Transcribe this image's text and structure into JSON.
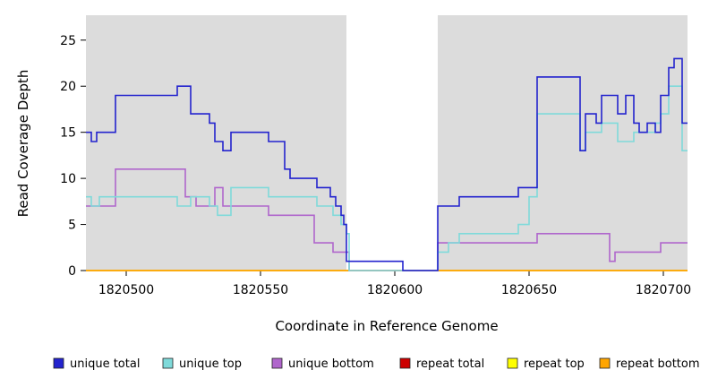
{
  "chart_data": {
    "type": "line",
    "subtype": "step",
    "title": "",
    "xlabel": "Coordinate in Reference Genome",
    "ylabel": "Read Coverage Depth",
    "xlim": [
      1820485,
      1820709
    ],
    "ylim": [
      0,
      27.7
    ],
    "xticks": [
      1820500,
      1820550,
      1820600,
      1820650,
      1820700
    ],
    "yticks": [
      0,
      5,
      10,
      15,
      20,
      25
    ],
    "grid": false,
    "panel_background": "#DCDCDC",
    "gap_region": {
      "x0": 1820582,
      "x1": 1820616,
      "color": "#FFFFFF"
    },
    "legend_position": "bottom",
    "series": [
      {
        "name": "unique total",
        "color": "#2323CE",
        "steps": [
          [
            1820485,
            15
          ],
          [
            1820487,
            14
          ],
          [
            1820489,
            15
          ],
          [
            1820496,
            19
          ],
          [
            1820519,
            20
          ],
          [
            1820524,
            17
          ],
          [
            1820531,
            16
          ],
          [
            1820533,
            14
          ],
          [
            1820536,
            13
          ],
          [
            1820539,
            15
          ],
          [
            1820553,
            14
          ],
          [
            1820559,
            11
          ],
          [
            1820561,
            10
          ],
          [
            1820571,
            9
          ],
          [
            1820576,
            8
          ],
          [
            1820578,
            7
          ],
          [
            1820580,
            6
          ],
          [
            1820581,
            5
          ],
          [
            1820582,
            1
          ],
          [
            1820603,
            0
          ],
          [
            1820616,
            7
          ],
          [
            1820624,
            8
          ],
          [
            1820646,
            9
          ],
          [
            1820653,
            21
          ],
          [
            1820669,
            13
          ],
          [
            1820671,
            17
          ],
          [
            1820675,
            16
          ],
          [
            1820677,
            19
          ],
          [
            1820683,
            17
          ],
          [
            1820686,
            19
          ],
          [
            1820689,
            16
          ],
          [
            1820691,
            15
          ],
          [
            1820694,
            16
          ],
          [
            1820697,
            15
          ],
          [
            1820699,
            19
          ],
          [
            1820702,
            22
          ],
          [
            1820704,
            23
          ],
          [
            1820707,
            16
          ]
        ]
      },
      {
        "name": "unique top",
        "color": "#7FDADA",
        "steps": [
          [
            1820485,
            8
          ],
          [
            1820487,
            7
          ],
          [
            1820490,
            8
          ],
          [
            1820519,
            7
          ],
          [
            1820524,
            8
          ],
          [
            1820531,
            7
          ],
          [
            1820534,
            6
          ],
          [
            1820539,
            9
          ],
          [
            1820553,
            8
          ],
          [
            1820571,
            7
          ],
          [
            1820577,
            6
          ],
          [
            1820580,
            5
          ],
          [
            1820582,
            4
          ],
          [
            1820583,
            0
          ],
          [
            1820616,
            2
          ],
          [
            1820620,
            3
          ],
          [
            1820624,
            4
          ],
          [
            1820646,
            5
          ],
          [
            1820650,
            8
          ],
          [
            1820653,
            17
          ],
          [
            1820669,
            13
          ],
          [
            1820671,
            15
          ],
          [
            1820677,
            16
          ],
          [
            1820683,
            14
          ],
          [
            1820689,
            15
          ],
          [
            1820697,
            16
          ],
          [
            1820699,
            17
          ],
          [
            1820702,
            20
          ],
          [
            1820707,
            13
          ]
        ]
      },
      {
        "name": "unique bottom",
        "color": "#B066CC",
        "steps": [
          [
            1820485,
            7
          ],
          [
            1820496,
            11
          ],
          [
            1820522,
            8
          ],
          [
            1820526,
            7
          ],
          [
            1820533,
            9
          ],
          [
            1820536,
            7
          ],
          [
            1820553,
            6
          ],
          [
            1820570,
            3
          ],
          [
            1820577,
            2
          ],
          [
            1820583,
            0
          ],
          [
            1820616,
            3
          ],
          [
            1820653,
            4
          ],
          [
            1820680,
            1
          ],
          [
            1820682,
            2
          ],
          [
            1820699,
            3
          ]
        ]
      },
      {
        "name": "repeat total",
        "color": "#CC0000",
        "steps": [
          [
            1820485,
            0
          ]
        ]
      },
      {
        "name": "repeat top",
        "color": "#FFFF00",
        "steps": [
          [
            1820485,
            0
          ]
        ]
      },
      {
        "name": "repeat bottom",
        "color": "#FFA500",
        "steps": [
          [
            1820485,
            0
          ]
        ]
      }
    ]
  }
}
